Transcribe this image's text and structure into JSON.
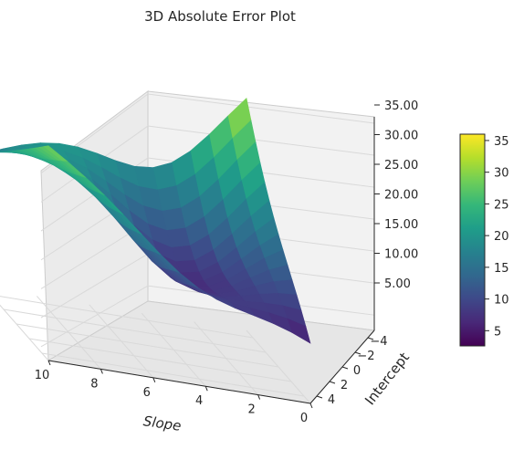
{
  "chart_data": {
    "type": "surface3d",
    "title": "3D Absolute Error Plot",
    "xlabel": "Slope",
    "ylabel": "Intercept",
    "zlabel": "",
    "x_ticks": [
      10,
      8,
      6,
      4,
      2,
      0
    ],
    "y_ticks": [
      -4,
      -2,
      0,
      2,
      4
    ],
    "z_ticks": [
      "5.00",
      "10.00",
      "15.00",
      "20.00",
      "25.00",
      "30.00",
      "35.00"
    ],
    "colorbar_ticks": [
      5,
      10,
      15,
      20,
      25,
      30,
      35
    ],
    "colormap": "viridis",
    "z_range": [
      2.6,
      36
    ],
    "grid": true,
    "corners": [
      {
        "slope": 10,
        "intercept": 5,
        "error": 29.5
      },
      {
        "slope": 10,
        "intercept": -5,
        "error": 16.8
      },
      {
        "slope": 0,
        "intercept": -5,
        "error": 36.0
      },
      {
        "slope": 0,
        "intercept": 5,
        "error": 5.5
      }
    ],
    "minimum": {
      "slope": 3.5,
      "intercept": 0,
      "error": 2.6
    }
  },
  "colors": {
    "viridis": [
      "#440154",
      "#482878",
      "#3e4989",
      "#31688e",
      "#26828e",
      "#1f9e89",
      "#35b779",
      "#6ece58",
      "#b5de2b",
      "#fde725"
    ],
    "pane": "#f2f2f2",
    "grid": "#d9d9d9",
    "text": "#262626"
  }
}
